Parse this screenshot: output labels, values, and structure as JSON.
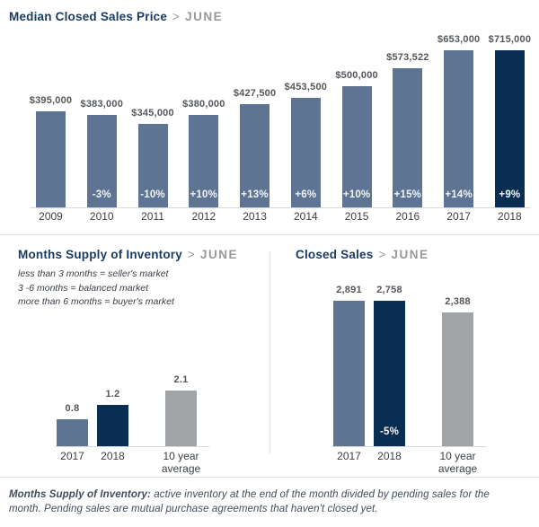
{
  "colors": {
    "bar_default": "#5d7493",
    "bar_highlight": "#0a2d52",
    "bar_average": "#a1a4a7",
    "title_navy": "#1b3a5f",
    "muted_gray": "#96989b",
    "axis_line": "#d8d9da",
    "annotation_text": "#f2f4f6"
  },
  "chart_data": [
    {
      "type": "bar",
      "title": "Median Closed Sales Price",
      "separator": ">",
      "period": "JUNE",
      "categories": [
        "2009",
        "2010",
        "2011",
        "2012",
        "2013",
        "2014",
        "2015",
        "2016",
        "2017",
        "2018"
      ],
      "values": [
        395000,
        383000,
        345000,
        380000,
        427500,
        453500,
        500000,
        573522,
        653000,
        715000
      ],
      "value_labels": [
        "$395,000",
        "$383,000",
        "$345,000",
        "$380,000",
        "$427,500",
        "$453,500",
        "$500,000",
        "$573,522",
        "$653,000",
        "$715,000"
      ],
      "bar_annotations": [
        "",
        "-3%",
        "-10%",
        "+10%",
        "+13%",
        "+6%",
        "+10%",
        "+15%",
        "+14%",
        "+9%"
      ],
      "bar_roles": [
        "default",
        "default",
        "default",
        "default",
        "default",
        "default",
        "default",
        "default",
        "default",
        "highlight"
      ],
      "ylim": [
        0,
        715000
      ],
      "xlabel": "",
      "ylabel": "",
      "grid": false,
      "legend": "none"
    },
    {
      "type": "bar",
      "title": "Months Supply of Inventory",
      "separator": ">",
      "period": "JUNE",
      "notes": [
        "less than 3 months = seller's market",
        "3 -6 months = balanced market",
        "more than 6 months = buyer's market"
      ],
      "categories": [
        "2017",
        "2018",
        "10 year average"
      ],
      "values": [
        0.8,
        1.2,
        2.1
      ],
      "value_labels": [
        "0.8",
        "1.2",
        "2.1"
      ],
      "bar_annotations": [
        "",
        "",
        ""
      ],
      "bar_roles": [
        "default",
        "highlight",
        "average"
      ],
      "ylim": [
        0,
        2.1
      ],
      "xlabel": "",
      "ylabel": "",
      "grid": false,
      "legend": "none"
    },
    {
      "type": "bar",
      "title": "Closed Sales",
      "separator": ">",
      "period": "JUNE",
      "categories": [
        "2017",
        "2018",
        "10 year average"
      ],
      "values": [
        2891,
        2758,
        2388
      ],
      "value_labels": [
        "2,891",
        "2,758",
        "2,388"
      ],
      "bar_annotations": [
        "",
        "-5%",
        ""
      ],
      "bar_roles": [
        "default",
        "highlight",
        "average"
      ],
      "ylim": [
        0,
        2891
      ],
      "xlabel": "",
      "ylabel": "",
      "grid": false,
      "legend": "none"
    }
  ],
  "footer": {
    "lead": "Months Supply of Inventory:",
    "text": " active inventory at the end of the month divided by pending sales for the month. Pending sales are mutual purchase agreements that haven't closed yet."
  }
}
